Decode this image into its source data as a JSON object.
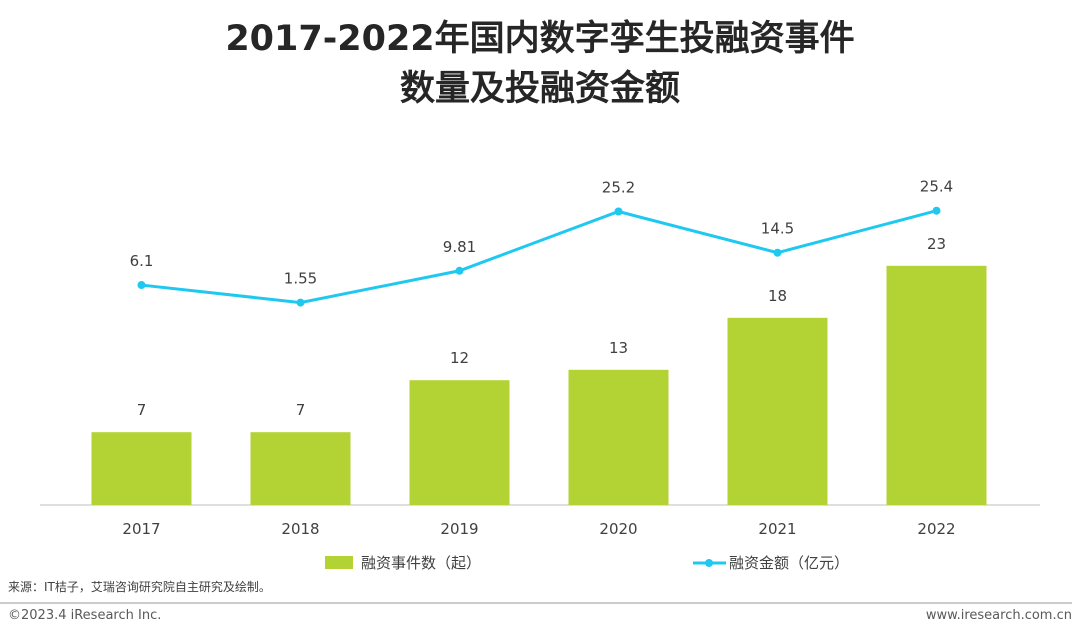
{
  "chart_data": {
    "type": "bar",
    "title": "2017-2022年国内数字孪生投融资事件数量及投融资金额",
    "categories": [
      "2017",
      "2018",
      "2019",
      "2020",
      "2021",
      "2022"
    ],
    "series": [
      {
        "name": "融资事件数（起）",
        "type": "bar",
        "color": "#b3d234",
        "values": [
          7,
          7,
          12,
          13,
          18,
          23
        ]
      },
      {
        "name": "融资金额（亿元）",
        "type": "line",
        "axis": "y2",
        "color": "#1fc8f0",
        "values": [
          6.1,
          1.55,
          9.81,
          25.2,
          14.5,
          25.4
        ]
      }
    ],
    "ylim": [
      0,
      40
    ],
    "y2lim": [
      -51,
      57
    ]
  },
  "source": "来源：IT桔子，艾瑞咨询研究院自主研究及绘制。",
  "copyright": "©2023.4 iResearch Inc.",
  "website": "www.iresearch.com.cn"
}
